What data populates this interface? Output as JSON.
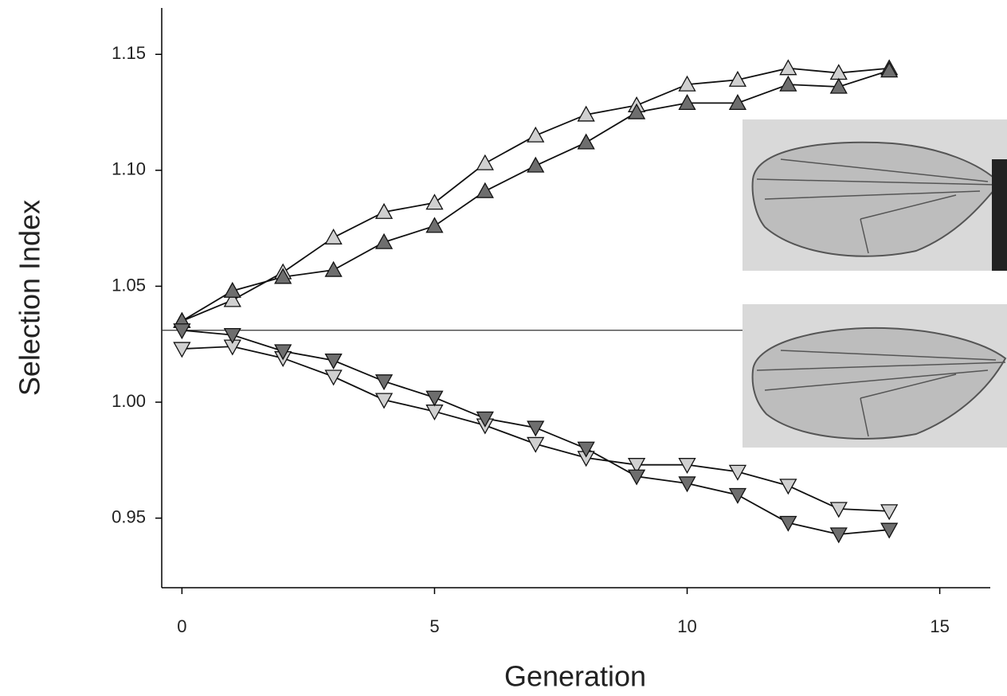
{
  "chart_data": {
    "type": "line",
    "x_label": "Generation",
    "y_label": "Selection Index",
    "x": [
      0,
      1,
      2,
      3,
      4,
      5,
      6,
      7,
      8,
      9,
      10,
      11,
      12,
      13,
      14
    ],
    "series": [
      {
        "color": "#d0d0d0",
        "marker": "triangle-up",
        "values": [
          1.035,
          1.044,
          1.056,
          1.071,
          1.082,
          1.086,
          1.103,
          1.115,
          1.124,
          1.128,
          1.137,
          1.139,
          1.144,
          1.142,
          1.144
        ]
      },
      {
        "color": "#6e6e6e",
        "marker": "triangle-up",
        "values": [
          1.035,
          1.048,
          1.054,
          1.057,
          1.069,
          1.076,
          1.091,
          1.102,
          1.112,
          1.125,
          1.129,
          1.129,
          1.137,
          1.136,
          1.143
        ]
      },
      {
        "color": "#d0d0d0",
        "marker": "triangle-down",
        "values": [
          1.023,
          1.024,
          1.019,
          1.011,
          1.001,
          0.996,
          0.99,
          0.982,
          0.976,
          0.973,
          0.973,
          0.97,
          0.964,
          0.954,
          0.953
        ]
      },
      {
        "color": "#6e6e6e",
        "marker": "triangle-down",
        "values": [
          1.031,
          1.029,
          1.022,
          1.018,
          1.009,
          1.002,
          0.993,
          0.989,
          0.98,
          0.968,
          0.965,
          0.96,
          0.948,
          0.943,
          0.945
        ]
      }
    ],
    "reference_line": 1.031,
    "xlim": [
      -0.4,
      16
    ],
    "ylim": [
      0.92,
      1.17
    ],
    "xticks": [
      0,
      5,
      10,
      15
    ],
    "yticks": [
      0.95,
      {
        "value": 1.0,
        "label": "1.00"
      },
      1.05,
      {
        "value": 1.1,
        "label": "1.10"
      },
      1.15
    ]
  }
}
